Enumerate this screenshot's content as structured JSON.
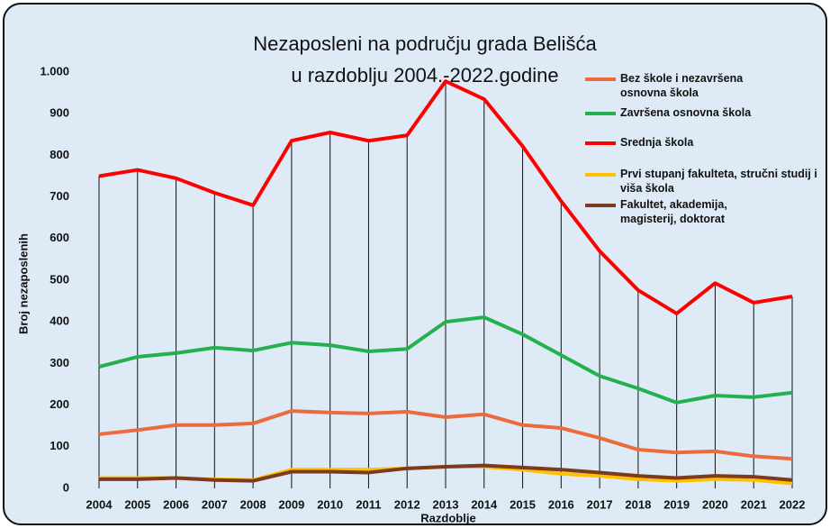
{
  "chart_data": {
    "type": "line",
    "title": [
      "Nezaposleni na području grada Belišća",
      "u razdoblju 2004.-2022.godine"
    ],
    "xlabel": "Razdoblje",
    "ylabel": "Broj nezaposlenih",
    "categories": [
      "2004",
      "2005",
      "2006",
      "2007",
      "2008",
      "2009",
      "2010",
      "2011",
      "2012",
      "2013",
      "2014",
      "2015",
      "2016",
      "2017",
      "2018",
      "2019",
      "2020",
      "2021",
      "2022"
    ],
    "series": [
      {
        "name": "Bez škole i nezavršena osnovna škola",
        "color": "#ec6a3c",
        "values": [
          130,
          140,
          152,
          152,
          156,
          186,
          182,
          180,
          184,
          171,
          178,
          152,
          145,
          121,
          93,
          86,
          89,
          77,
          71
        ]
      },
      {
        "name": "Završena osnovna škola",
        "color": "#22b14c",
        "values": [
          292,
          316,
          325,
          338,
          331,
          350,
          344,
          329,
          335,
          400,
          411,
          370,
          320,
          270,
          240,
          206,
          223,
          219,
          230
        ]
      },
      {
        "name": "Srednja škola",
        "color": "#ff0000",
        "values": [
          750,
          765,
          745,
          710,
          680,
          835,
          855,
          835,
          848,
          978,
          935,
          822,
          690,
          570,
          476,
          420,
          493,
          446,
          461
        ]
      },
      {
        "name": "Prvi stupanj fakulteta, stručni studij i viša škola",
        "color": "#ffc000",
        "values": [
          25,
          25,
          25,
          22,
          20,
          45,
          45,
          45,
          48,
          52,
          52,
          45,
          35,
          30,
          22,
          18,
          22,
          20,
          12
        ]
      },
      {
        "name": "Fakultet, akademija, magisterij, doktorat",
        "color": "#7b3b1c",
        "values": [
          22,
          22,
          25,
          20,
          18,
          40,
          40,
          38,
          48,
          52,
          55,
          50,
          45,
          38,
          30,
          25,
          30,
          28,
          20
        ]
      }
    ],
    "ylim": [
      0,
      1000
    ],
    "yticks": [
      0,
      100,
      200,
      300,
      400,
      500,
      600,
      700,
      800,
      900,
      {
        "value": 1000,
        "label": "1.000"
      }
    ],
    "drop_lines": true
  }
}
